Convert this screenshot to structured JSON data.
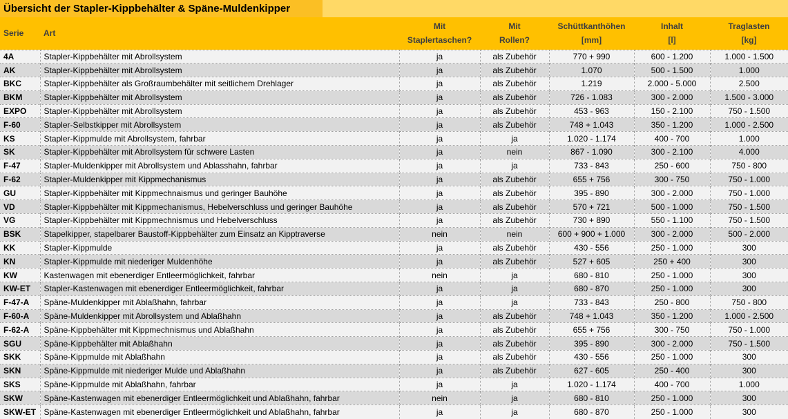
{
  "title": "Übersicht der Stapler-Kippbehälter & Späne-Muldenkipper",
  "colors": {
    "title_bg": "#FBBF24",
    "title_filler_bg": "#FFD966",
    "header_bg": "#FFC000",
    "header_text": "#3F3F3F",
    "row_light": "#F2F2F2",
    "row_dark": "#D9D9D9",
    "border_dotted": "#9E9E9E"
  },
  "table": {
    "columns": [
      {
        "key": "serie",
        "line1": "Serie",
        "line2": ""
      },
      {
        "key": "art",
        "line1": "Art",
        "line2": ""
      },
      {
        "key": "staplertaschen",
        "line1": "Mit",
        "line2": "Staplertaschen?"
      },
      {
        "key": "rollen",
        "line1": "Mit",
        "line2": "Rollen?"
      },
      {
        "key": "schuettkanthoehen",
        "line1": "Schüttkanthöhen",
        "line2": "[mm]"
      },
      {
        "key": "inhalt",
        "line1": "Inhalt",
        "line2": "[l]"
      },
      {
        "key": "traglasten",
        "line1": "Traglasten",
        "line2": "[kg]"
      }
    ],
    "rows": [
      [
        "4A",
        "Stapler-Kippbehälter mit Abrollsystem",
        "ja",
        "als Zubehör",
        "770 + 990",
        "600 - 1.200",
        "1.000 - 1.500"
      ],
      [
        "AK",
        "Stapler-Kippbehälter mit Abrollsystem",
        "ja",
        "als Zubehör",
        "1.070",
        "500 - 1.500",
        "1.000"
      ],
      [
        "BKC",
        "Stapler-Kippbehälter als Großraumbehälter mit seitlichem Drehlager",
        "ja",
        "als Zubehör",
        "1.219",
        "2.000 - 5.000",
        "2.500"
      ],
      [
        "BKM",
        "Stapler-Kippbehälter mit Abrollsystem",
        "ja",
        "als Zubehör",
        "726 - 1.083",
        "300 - 2.000",
        "1.500 - 3.000"
      ],
      [
        "EXPO",
        "Stapler-Kippbehälter mit Abrollsystem",
        "ja",
        "als Zubehör",
        "453 - 963",
        "150 - 2.100",
        "750 - 1.500"
      ],
      [
        "F-60",
        "Stapler-Selbstkipper mit Abrollsystem",
        "ja",
        "als Zubehör",
        "748 + 1.043",
        "350 - 1.200",
        "1.000 - 2.500"
      ],
      [
        "KS",
        "Stapler-Kippmulde mit Abrollsystem, fahrbar",
        "ja",
        "ja",
        "1.020 - 1.174",
        "400 - 700",
        "1.000"
      ],
      [
        "SK",
        "Stapler-Kippbehälter mit Abrollsystem für schwere Lasten",
        "ja",
        "nein",
        "867 - 1.090",
        "300 - 2.100",
        "4.000"
      ],
      [
        "F-47",
        "Stapler-Muldenkipper mit Abrollsystem und Ablasshahn, fahrbar",
        "ja",
        "ja",
        "733 - 843",
        "250 - 600",
        "750 - 800"
      ],
      [
        "F-62",
        "Stapler-Muldenkipper mit Kippmechanismus",
        "ja",
        "als Zubehör",
        "655 + 756",
        "300 - 750",
        "750 - 1.000"
      ],
      [
        "GU",
        "Stapler-Kippbehälter mit Kippmechnaismus und geringer Bauhöhe",
        "ja",
        "als Zubehör",
        "395 - 890",
        "300 - 2.000",
        "750 - 1.000"
      ],
      [
        "VD",
        "Stapler-Kippbehälter mit Kippmechanismus, Hebelverschluss und geringer Bauhöhe",
        "ja",
        "als Zubehör",
        "570 + 721",
        "500 - 1.000",
        "750 - 1.500"
      ],
      [
        "VG",
        "Stapler-Kippbehälter mit Kippmechnismus und Hebelverschluss",
        "ja",
        "als Zubehör",
        "730 + 890",
        "550 - 1.100",
        "750 - 1.500"
      ],
      [
        "BSK",
        "Stapelkipper, stapelbarer Baustoff-Kippbehälter zum Einsatz an Kipptraverse",
        "nein",
        "nein",
        "600 + 900 + 1.000",
        "300 - 2.000",
        "500 - 2.000"
      ],
      [
        "KK",
        "Stapler-Kippmulde",
        "ja",
        "als Zubehör",
        "430 - 556",
        "250 - 1.000",
        "300"
      ],
      [
        "KN",
        "Stapler-Kippmulde mit niederiger Muldenhöhe",
        "ja",
        "als Zubehör",
        "527 + 605",
        "250 + 400",
        "300"
      ],
      [
        "KW",
        "Kastenwagen mit ebenerdiger Entleermöglichkeit, fahrbar",
        "nein",
        "ja",
        "680 - 810",
        "250 - 1.000",
        "300"
      ],
      [
        "KW-ET",
        "Stapler-Kastenwagen mit ebenerdiger Entleermöglichkeit, fahrbar",
        "ja",
        "ja",
        "680 - 870",
        "250 - 1.000",
        "300"
      ],
      [
        "F-47-A",
        "Späne-Muldenkipper mit Ablaßhahn, fahrbar",
        "ja",
        "ja",
        "733 - 843",
        "250 - 800",
        "750 - 800"
      ],
      [
        "F-60-A",
        "Späne-Muldenkipper mit Abrollsystem und Ablaßhahn",
        "ja",
        "als Zubehör",
        "748 + 1.043",
        "350 - 1.200",
        "1.000 - 2.500"
      ],
      [
        "F-62-A",
        "Späne-Kippbehälter mit Kippmechnismus und Ablaßhahn",
        "ja",
        "als Zubehör",
        "655 + 756",
        "300 - 750",
        "750 - 1.000"
      ],
      [
        "SGU",
        "Späne-Kippbehälter mit Ablaßhahn",
        "ja",
        "als Zubehör",
        "395 - 890",
        "300 - 2.000",
        "750 - 1.500"
      ],
      [
        "SKK",
        "Späne-Kippmulde mit Ablaßhahn",
        "ja",
        "als Zubehör",
        "430 - 556",
        "250 - 1.000",
        "300"
      ],
      [
        "SKN",
        "Späne-Kippmulde mit niederiger Mulde und Ablaßhahn",
        "ja",
        "als Zubehör",
        "627 - 605",
        "250 - 400",
        "300"
      ],
      [
        "SKS",
        "Späne-Kippmulde mit Ablaßhahn, fahrbar",
        "ja",
        "ja",
        "1.020 - 1.174",
        "400 - 700",
        "1.000"
      ],
      [
        "SKW",
        "Späne-Kastenwagen mit ebenerdiger Entleermöglichkeit und Ablaßhahn, fahrbar",
        "nein",
        "ja",
        "680 - 810",
        "250 - 1.000",
        "300"
      ],
      [
        "SKW-ET",
        "Späne-Kastenwagen mit ebenerdiger Entleermöglichkeit und Ablaßhahn, fahrbar",
        "ja",
        "ja",
        "680 - 870",
        "250 - 1.000",
        "300"
      ]
    ]
  }
}
